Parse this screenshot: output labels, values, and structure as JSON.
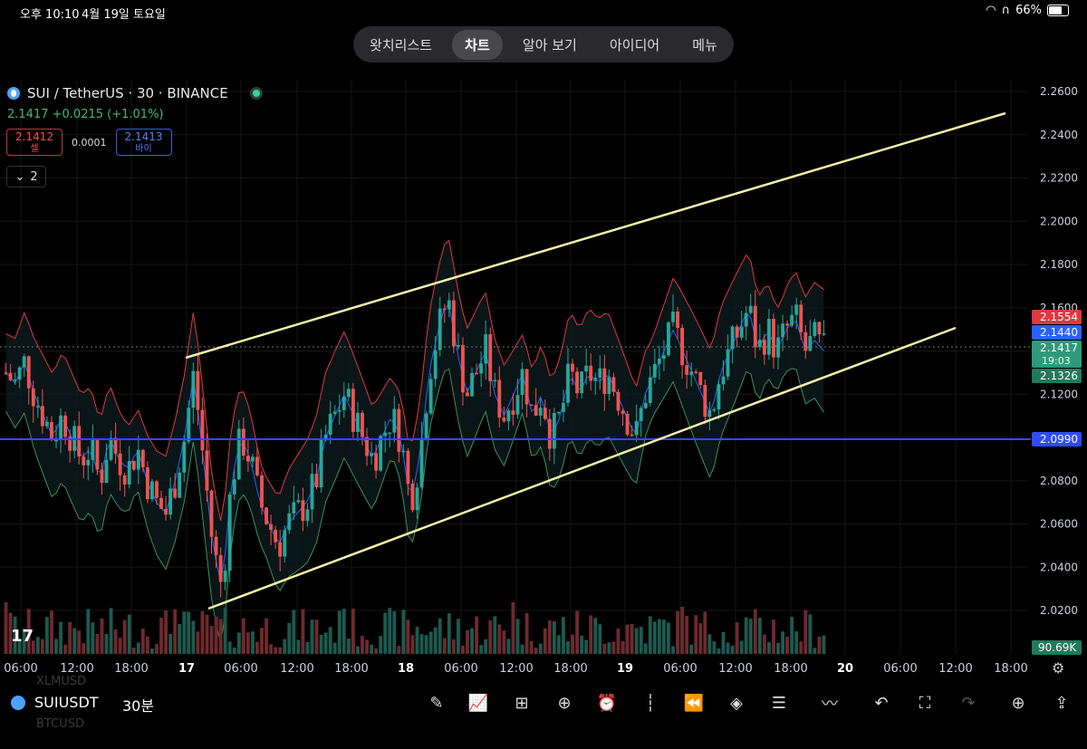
{
  "status_bar": {
    "time": "오후 10:10",
    "date": "4월 19일 토요일",
    "battery": "66%"
  },
  "tabs": [
    {
      "label": "왓치리스트",
      "active": false
    },
    {
      "label": "차트",
      "active": true
    },
    {
      "label": "알아 보기",
      "active": false
    },
    {
      "label": "아이디어",
      "active": false
    },
    {
      "label": "메뉴",
      "active": false
    }
  ],
  "symbol_header": {
    "title": "SUI / TetherUS · 30 · BINANCE",
    "price": "2.1417",
    "change": "+0.0215 (+1.01%)"
  },
  "trade": {
    "sell_price": "2.1412",
    "sell_label": "셀",
    "spread": "0.0001",
    "buy_price": "2.1413",
    "buy_label": "바이"
  },
  "indicator_toggle": {
    "count": "2"
  },
  "price_axis": {
    "ticks": [
      "2.2600",
      "2.2400",
      "2.2200",
      "2.2000",
      "2.1800",
      "2.1600",
      "2.1400",
      "2.1200",
      "2.1000",
      "2.0800",
      "2.0600",
      "2.0400",
      "2.0200"
    ]
  },
  "price_labels": {
    "upper_band": "2.1554",
    "mid_band": "2.1440",
    "last": "2.1417",
    "countdown": "19:03",
    "lower_band": "2.1326",
    "hline": "2.0990",
    "volume": "90.69K"
  },
  "time_axis": {
    "ticks": [
      "06:00",
      "12:00",
      "18:00",
      "17",
      "06:00",
      "12:00",
      "18:00",
      "18",
      "06:00",
      "12:00",
      "18:00",
      "19",
      "06:00",
      "12:00",
      "18:00",
      "20",
      "06:00",
      "12:00",
      "18:00"
    ]
  },
  "colors": {
    "up": "#26a69a",
    "down": "#ef5350",
    "upper_band": "#e0393e",
    "mid_band": "#2962ff",
    "lower_band": "#3f8f5a",
    "hline": "#2e4cff",
    "channel": "#f4f0a8"
  },
  "chart_data": {
    "type": "candlestick",
    "ylim": [
      2.01,
      2.27
    ],
    "horizontal_line": 2.099,
    "channel": {
      "upper": [
        [
          2.135,
          2.25
        ]
      ],
      "lower": [
        [
          2.021,
          2.15
        ]
      ]
    },
    "close_path": [
      2.13,
      2.125,
      2.135,
      2.12,
      2.11,
      2.1,
      2.11,
      2.1,
      2.09,
      2.095,
      2.08,
      2.1,
      2.09,
      2.085,
      2.095,
      2.08,
      2.07,
      2.065,
      2.08,
      2.1,
      2.13,
      2.09,
      2.05,
      2.03,
      2.08,
      2.1,
      2.09,
      2.07,
      2.06,
      2.05,
      2.06,
      2.065,
      2.07,
      2.08,
      2.1,
      2.11,
      2.12,
      2.11,
      2.1,
      2.09,
      2.1,
      2.11,
      2.1,
      2.07,
      2.09,
      2.13,
      2.15,
      2.165,
      2.14,
      2.12,
      2.13,
      2.14,
      2.12,
      2.11,
      2.12,
      2.13,
      2.11,
      2.12,
      2.1,
      2.11,
      2.13,
      2.12,
      2.13,
      2.125,
      2.13,
      2.12,
      2.11,
      2.1,
      2.12,
      2.13,
      2.14,
      2.15,
      2.14,
      2.13,
      2.12,
      2.11,
      2.13,
      2.14,
      2.15,
      2.16,
      2.14,
      2.15,
      2.14,
      2.15,
      2.155,
      2.14,
      2.145,
      2.14
    ]
  },
  "toolbar": {
    "symbol": "SUIUSDT",
    "interval": "30분",
    "ghost1": "XLMUSD",
    "ghost2": "BTCUSD"
  }
}
